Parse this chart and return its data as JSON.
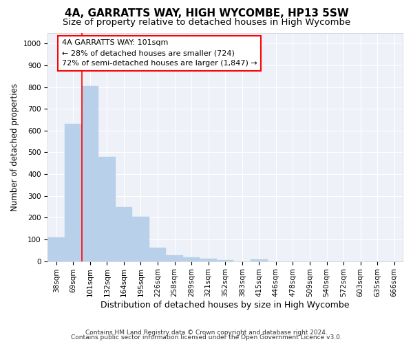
{
  "title": "4A, GARRATTS WAY, HIGH WYCOMBE, HP13 5SW",
  "subtitle": "Size of property relative to detached houses in High Wycombe",
  "xlabel": "Distribution of detached houses by size in High Wycombe",
  "ylabel": "Number of detached properties",
  "footer_line1": "Contains HM Land Registry data © Crown copyright and database right 2024.",
  "footer_line2": "Contains public sector information licensed under the Open Government Licence v3.0.",
  "annotation_title": "4A GARRATTS WAY: 101sqm",
  "annotation_line2": "← 28% of detached houses are smaller (724)",
  "annotation_line3": "72% of semi-detached houses are larger (1,847) →",
  "bar_color": "#b8d0ea",
  "bar_edge_color": "#b8d0ea",
  "categories": [
    "38sqm",
    "69sqm",
    "101sqm",
    "132sqm",
    "164sqm",
    "195sqm",
    "226sqm",
    "258sqm",
    "289sqm",
    "321sqm",
    "352sqm",
    "383sqm",
    "415sqm",
    "446sqm",
    "478sqm",
    "509sqm",
    "540sqm",
    "572sqm",
    "603sqm",
    "635sqm",
    "666sqm"
  ],
  "values": [
    110,
    630,
    805,
    480,
    250,
    205,
    63,
    28,
    18,
    10,
    5,
    0,
    8,
    0,
    0,
    0,
    0,
    0,
    0,
    0,
    0
  ],
  "ylim": [
    0,
    1050
  ],
  "yticks": [
    0,
    100,
    200,
    300,
    400,
    500,
    600,
    700,
    800,
    900,
    1000
  ],
  "background_color": "#eef2f8",
  "grid_color": "#ffffff",
  "title_fontsize": 11,
  "subtitle_fontsize": 9.5,
  "xlabel_fontsize": 9,
  "ylabel_fontsize": 8.5,
  "tick_fontsize": 7.5,
  "annotation_fontsize": 8,
  "footer_fontsize": 6.5
}
